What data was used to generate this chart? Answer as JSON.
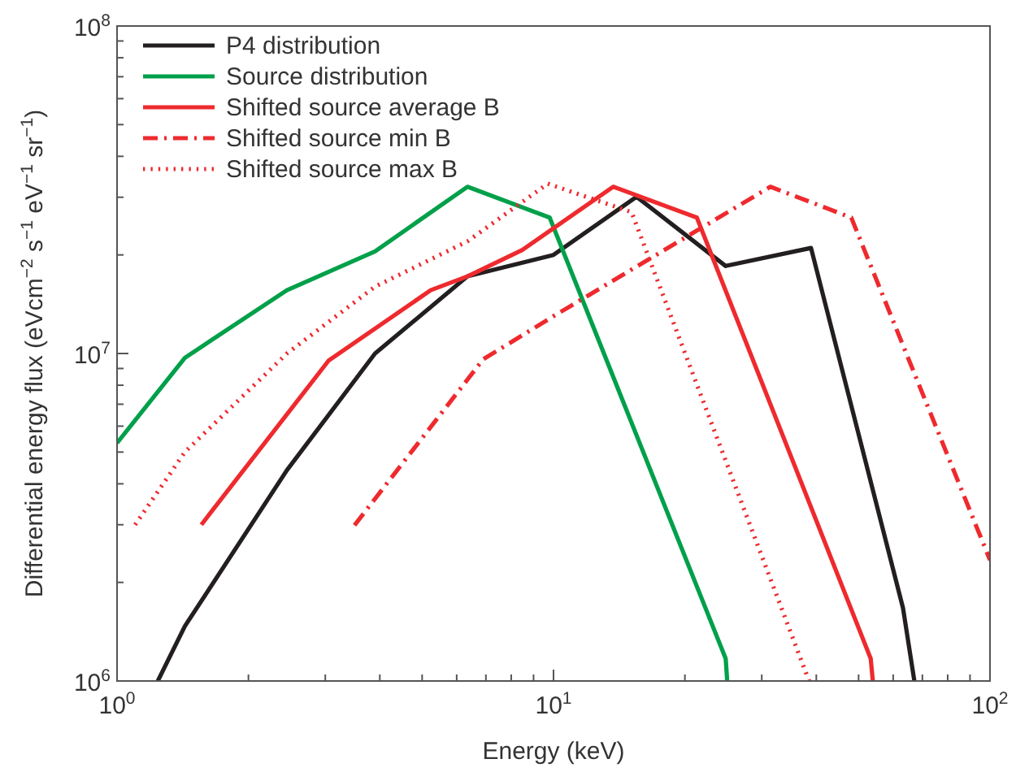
{
  "chart_data": {
    "type": "line",
    "xlabel": "Energy (keV)",
    "ylabel": "Differential energy flux (eVcm$^{−2}$ s$^{−1}$ eV$^{−1}$ sr$^{−1}$)",
    "log": "xy",
    "legend": "top left",
    "marker": "none",
    "grid": false,
    "xlim": [
      1,
      100
    ],
    "ylim": [
      1000000,
      100000000
    ],
    "xticks": [
      {
        "value": 1,
        "label": "10$^{0}$"
      },
      {
        "value": 2,
        "label": null
      },
      {
        "value": 3,
        "label": null
      },
      {
        "value": 4,
        "label": null
      },
      {
        "value": 5,
        "label": null
      },
      {
        "value": 6,
        "label": null
      },
      {
        "value": 7,
        "label": null
      },
      {
        "value": 8,
        "label": null
      },
      {
        "value": 9,
        "label": null
      },
      {
        "value": 10,
        "label": "10$^{1}$"
      },
      {
        "value": 20,
        "label": null
      },
      {
        "value": 30,
        "label": null
      },
      {
        "value": 40,
        "label": null
      },
      {
        "value": 50,
        "label": null
      },
      {
        "value": 60,
        "label": null
      },
      {
        "value": 70,
        "label": null
      },
      {
        "value": 80,
        "label": null
      },
      {
        "value": 90,
        "label": null
      },
      {
        "value": 100,
        "label": "10$^{2}$"
      }
    ],
    "yticks": [
      {
        "value": 1000000,
        "label": "10$^{6}$"
      },
      {
        "value": 2000000,
        "label": null
      },
      {
        "value": 3000000,
        "label": null
      },
      {
        "value": 4000000,
        "label": null
      },
      {
        "value": 5000000,
        "label": null
      },
      {
        "value": 6000000,
        "label": null
      },
      {
        "value": 7000000,
        "label": null
      },
      {
        "value": 8000000,
        "label": null
      },
      {
        "value": 9000000,
        "label": null
      },
      {
        "value": 10000000,
        "label": "10$^{7}$"
      },
      {
        "value": 20000000,
        "label": null
      },
      {
        "value": 30000000,
        "label": null
      },
      {
        "value": 40000000,
        "label": null
      },
      {
        "value": 50000000,
        "label": null
      },
      {
        "value": 60000000,
        "label": null
      },
      {
        "value": 70000000,
        "label": null
      },
      {
        "value": 80000000,
        "label": null
      },
      {
        "value": 90000000,
        "label": null
      },
      {
        "value": 100000000,
        "label": "10$^{8}$"
      }
    ],
    "series": [
      {
        "name": "P4 distribution",
        "color": "#231f20",
        "line_style": "solid",
        "x": [
          1.24,
          1.43,
          2.45,
          3.9,
          6.35,
          10,
          15.5,
          24.8,
          38.9,
          63.2,
          67.1
        ],
        "values": [
          1000000,
          1470000,
          4400000,
          10000000,
          17200000,
          20000000,
          30100000,
          18500000,
          21000000,
          1670000,
          1000000
        ]
      },
      {
        "name": "Source distribution",
        "color": "#00a04a",
        "line_style": "solid",
        "x": [
          1,
          1.43,
          2.45,
          3.9,
          6.35,
          9.8,
          24.8,
          25
        ],
        "values": [
          5330000,
          9700000,
          15600000,
          20500000,
          32300000,
          26000000,
          1170000,
          1000000
        ]
      },
      {
        "name": "Shifted source average B",
        "color": "#ee2a2e",
        "line_style": "solid",
        "x": [
          1.56,
          3.05,
          5.23,
          6.35,
          8.48,
          13.7,
          21.3,
          53.3,
          53.9
        ],
        "values": [
          3000000,
          9500000,
          15600000,
          17200000,
          20700000,
          32300000,
          26000000,
          1170000,
          1000000
        ]
      },
      {
        "name": "Shifted source min B",
        "color": "#ee2a2e",
        "line_style": "dashdot",
        "x": [
          3.5,
          6.9,
          10,
          31.4,
          48.1,
          100
        ],
        "values": [
          2990000,
          9600000,
          13000000,
          32300000,
          26000000,
          2340000
        ]
      },
      {
        "name": "Shifted source max B",
        "color": "#ee2a2e",
        "line_style": "dotted",
        "x": [
          1.1,
          1.43,
          2.45,
          3.9,
          6.35,
          9.7,
          15.1,
          38.5
        ],
        "values": [
          3000000,
          5000000,
          10000000,
          16000000,
          22000000,
          33000000,
          27000000,
          1000000
        ]
      }
    ]
  }
}
